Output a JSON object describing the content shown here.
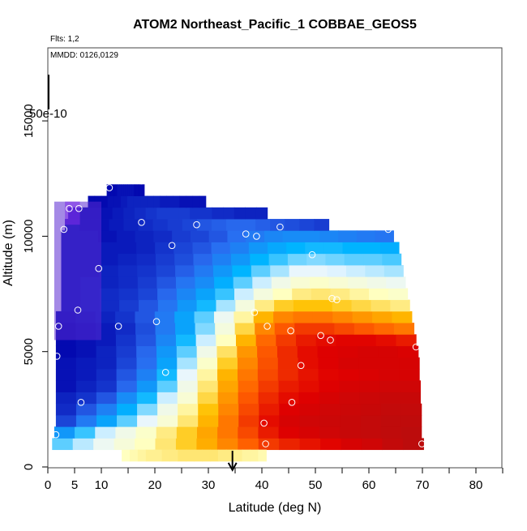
{
  "header": {
    "title": "ATOM2 Northeast_Pacific_1 COBBAE_GEOS5",
    "flights": "Flts: 1,2",
    "dates": "MMDD: 0126,0129",
    "colorbar_label": "50e-10"
  },
  "chart_data": {
    "type": "heatmap",
    "title": "ATOM2 Northeast_Pacific_1 COBBAE_GEOS5",
    "xlabel": "Latitude (deg N)",
    "ylabel": "Altitude (m)",
    "xlim": [
      0,
      85
    ],
    "ylim": [
      0,
      17500
    ],
    "xticks": [
      0,
      5,
      10,
      20,
      30,
      40,
      50,
      60,
      70,
      80
    ],
    "xtick_labels": [
      "0",
      "5",
      "10",
      "20",
      "30",
      "40",
      "50",
      "60",
      "70",
      "80"
    ],
    "yticks": [
      0,
      5000,
      10000,
      15000
    ],
    "ytick_labels": [
      "0",
      "5000",
      "10000",
      "15000"
    ],
    "grid": false,
    "colorscale": [
      "#0000aa",
      "#2a6cf0",
      "#00b4ff",
      "#e8f6ff",
      "#ffffc0",
      "#ffc000",
      "#ff6000",
      "#e00000",
      "#b01010"
    ],
    "row_height_m": 500,
    "rows": [
      {
        "alt": 1000,
        "x0": 0.8,
        "x1": 70.2,
        "v": [
          0.3,
          0.35,
          0.4,
          0.45,
          0.5,
          0.55,
          0.6,
          0.65,
          0.7,
          0.75,
          0.8,
          0.83,
          0.85,
          0.87,
          0.9,
          0.92,
          0.95,
          0.97
        ]
      },
      {
        "alt": 1500,
        "x0": 1.2,
        "x1": 69.8,
        "v": [
          0.2,
          0.28,
          0.36,
          0.42,
          0.48,
          0.54,
          0.6,
          0.66,
          0.72,
          0.78,
          0.84,
          0.88,
          0.9,
          0.92,
          0.94,
          0.95,
          0.96,
          0.97
        ]
      },
      {
        "alt": 2000,
        "x0": 1.5,
        "x1": 69.8,
        "v": [
          0.08,
          0.15,
          0.22,
          0.3,
          0.38,
          0.46,
          0.55,
          0.64,
          0.72,
          0.8,
          0.86,
          0.9,
          0.92,
          0.93,
          0.94,
          0.95,
          0.96,
          0.96
        ]
      },
      {
        "alt": 2500,
        "x0": 1.5,
        "x1": 69.8,
        "v": [
          0.05,
          0.1,
          0.16,
          0.24,
          0.32,
          0.42,
          0.52,
          0.62,
          0.7,
          0.78,
          0.84,
          0.88,
          0.9,
          0.92,
          0.93,
          0.94,
          0.95,
          0.95
        ]
      },
      {
        "alt": 3000,
        "x0": 1.5,
        "x1": 69.6,
        "v": [
          0.04,
          0.06,
          0.1,
          0.18,
          0.26,
          0.36,
          0.46,
          0.58,
          0.68,
          0.76,
          0.82,
          0.86,
          0.88,
          0.9,
          0.92,
          0.93,
          0.94,
          0.94
        ]
      },
      {
        "alt": 3500,
        "x0": 1.5,
        "x1": 69.6,
        "v": [
          0.02,
          0.04,
          0.06,
          0.12,
          0.2,
          0.3,
          0.42,
          0.55,
          0.66,
          0.74,
          0.8,
          0.84,
          0.86,
          0.88,
          0.9,
          0.91,
          0.92,
          0.92
        ]
      },
      {
        "alt": 4000,
        "x0": 1.5,
        "x1": 69.4,
        "v": [
          0.02,
          0.03,
          0.05,
          0.1,
          0.16,
          0.26,
          0.38,
          0.52,
          0.64,
          0.72,
          0.78,
          0.82,
          0.85,
          0.87,
          0.88,
          0.89,
          0.9,
          0.9
        ]
      },
      {
        "alt": 4500,
        "x0": 1.5,
        "x1": 69.4,
        "v": [
          0.02,
          0.03,
          0.04,
          0.08,
          0.13,
          0.22,
          0.34,
          0.48,
          0.6,
          0.7,
          0.77,
          0.82,
          0.86,
          0.88,
          0.9,
          0.9,
          0.9,
          0.9
        ]
      },
      {
        "alt": 5000,
        "x0": 1.5,
        "x1": 69.2,
        "v": [
          0.01,
          0.02,
          0.04,
          0.07,
          0.12,
          0.2,
          0.3,
          0.42,
          0.56,
          0.68,
          0.76,
          0.82,
          0.86,
          0.88,
          0.89,
          0.9,
          0.9,
          0.89
        ]
      },
      {
        "alt": 5500,
        "x0": 1.5,
        "x1": 68.8,
        "v": [
          0.01,
          0.02,
          0.03,
          0.06,
          0.1,
          0.17,
          0.26,
          0.36,
          0.5,
          0.64,
          0.74,
          0.8,
          0.84,
          0.86,
          0.87,
          0.87,
          0.86,
          0.84
        ]
      },
      {
        "alt": 6000,
        "x0": 1.5,
        "x1": 68.4,
        "v": [
          0.01,
          0.02,
          0.03,
          0.05,
          0.09,
          0.15,
          0.22,
          0.32,
          0.44,
          0.58,
          0.7,
          0.76,
          0.8,
          0.8,
          0.78,
          0.76,
          0.74,
          0.72
        ]
      },
      {
        "alt": 6500,
        "x0": 1.5,
        "x1": 68.0,
        "v": [
          0.02,
          0.03,
          0.04,
          0.06,
          0.1,
          0.15,
          0.22,
          0.3,
          0.4,
          0.52,
          0.64,
          0.7,
          0.72,
          0.72,
          0.7,
          0.68,
          0.66,
          0.64
        ]
      },
      {
        "alt": 7000,
        "x0": 2.5,
        "x1": 67.6,
        "v": [
          0.03,
          0.04,
          0.05,
          0.07,
          0.1,
          0.14,
          0.2,
          0.26,
          0.34,
          0.44,
          0.54,
          0.6,
          0.62,
          0.62,
          0.6,
          0.58,
          0.56,
          0.54
        ]
      },
      {
        "alt": 7500,
        "x0": 2.5,
        "x1": 67.2,
        "v": [
          0.03,
          0.04,
          0.05,
          0.06,
          0.08,
          0.12,
          0.17,
          0.22,
          0.28,
          0.36,
          0.44,
          0.5,
          0.54,
          0.55,
          0.54,
          0.52,
          0.5,
          0.48
        ]
      },
      {
        "alt": 8000,
        "x0": 2.5,
        "x1": 66.8,
        "v": [
          0.03,
          0.04,
          0.04,
          0.05,
          0.07,
          0.1,
          0.14,
          0.18,
          0.24,
          0.3,
          0.36,
          0.42,
          0.46,
          0.48,
          0.46,
          0.44,
          0.42,
          0.4
        ]
      },
      {
        "alt": 8500,
        "x0": 2.5,
        "x1": 66.4,
        "v": [
          0.03,
          0.03,
          0.04,
          0.05,
          0.06,
          0.08,
          0.11,
          0.15,
          0.2,
          0.25,
          0.3,
          0.34,
          0.38,
          0.38,
          0.37,
          0.36,
          0.35,
          0.34
        ]
      },
      {
        "alt": 9000,
        "x0": 2.5,
        "x1": 66.0,
        "v": [
          0.03,
          0.03,
          0.03,
          0.04,
          0.05,
          0.07,
          0.09,
          0.12,
          0.16,
          0.2,
          0.25,
          0.28,
          0.31,
          0.32,
          0.31,
          0.3,
          0.3,
          0.29
        ]
      },
      {
        "alt": 9500,
        "x0": 2.5,
        "x1": 65.6,
        "v": [
          0.03,
          0.03,
          0.03,
          0.03,
          0.04,
          0.06,
          0.08,
          0.1,
          0.13,
          0.16,
          0.2,
          0.23,
          0.25,
          0.26,
          0.26,
          0.25,
          0.25,
          0.24
        ]
      },
      {
        "alt": 10000,
        "x0": 2.5,
        "x1": 64.6,
        "v": [
          0.03,
          0.03,
          0.02,
          0.03,
          0.04,
          0.05,
          0.07,
          0.08,
          0.1,
          0.13,
          0.15,
          0.17,
          0.18,
          0.18,
          0.17,
          0.16,
          0.15,
          0.14
        ]
      },
      {
        "alt": 10500,
        "x0": 3.2,
        "x1": 52.5,
        "v": [
          0.03,
          0.02,
          0.02,
          0.03,
          0.04,
          0.05,
          0.06,
          0.07,
          0.08,
          0.1,
          0.11,
          0.12,
          0.12,
          0.11,
          0.1,
          0.09,
          0.08,
          0.07
        ]
      },
      {
        "alt": 11000,
        "x0": 3.8,
        "x1": 41.0,
        "v": [
          0.02,
          0.02,
          0.02,
          0.02,
          0.03,
          0.04,
          0.05,
          0.06,
          0.07,
          0.07,
          0.07,
          0.06,
          0.06,
          0.05,
          0.05,
          0.04,
          0.04,
          0.04
        ]
      },
      {
        "alt": 11500,
        "x0": 7.5,
        "x1": 29.5,
        "v": [
          0.01,
          0.01,
          0.01,
          0.02,
          0.02,
          0.03,
          0.04,
          0.04,
          0.04,
          0.04,
          0.04,
          0.03,
          0.03,
          0.03,
          0.02,
          0.02,
          0.02,
          0.02
        ]
      },
      {
        "alt": 12000,
        "x0": 11.0,
        "x1": 18.0,
        "v": [
          0.01,
          0.01,
          0.01,
          0.01,
          0.01,
          0.02,
          0.02,
          0.02,
          0.02,
          0.02,
          0.02,
          0.02,
          0.02,
          0.01,
          0.01,
          0.01,
          0.01,
          0.01
        ]
      },
      {
        "alt": 500,
        "x0": 13.8,
        "x1": 40.8,
        "v": [
          0.5,
          0.51,
          0.52,
          0.53,
          0.53,
          0.54,
          0.54,
          0.55,
          0.55,
          0.55,
          0.55,
          0.55,
          0.54,
          0.54,
          0.53,
          0.52,
          0.52,
          0.51
        ]
      }
    ],
    "overlay_patches": [
      {
        "alt_from": 5500,
        "alt_to": 11500,
        "x0": 1.2,
        "x1": 10.0,
        "color": "#5a28d2"
      },
      {
        "alt_from": 10500,
        "alt_to": 11500,
        "x0": 3.2,
        "x1": 6.0,
        "color": "#7d2be8"
      }
    ],
    "points": [
      {
        "x": 1.5,
        "y": 1400
      },
      {
        "x": 1.7,
        "y": 4800
      },
      {
        "x": 2.0,
        "y": 6100
      },
      {
        "x": 3.0,
        "y": 10300
      },
      {
        "x": 4.0,
        "y": 11200
      },
      {
        "x": 5.8,
        "y": 11200
      },
      {
        "x": 5.6,
        "y": 6800
      },
      {
        "x": 6.2,
        "y": 2800
      },
      {
        "x": 9.5,
        "y": 8600
      },
      {
        "x": 11.5,
        "y": 12100
      },
      {
        "x": 13.2,
        "y": 6100
      },
      {
        "x": 17.5,
        "y": 10600
      },
      {
        "x": 17.5,
        "y": 12400
      },
      {
        "x": 20.3,
        "y": 6300
      },
      {
        "x": 22.0,
        "y": 4100
      },
      {
        "x": 23.2,
        "y": 9600
      },
      {
        "x": 27.8,
        "y": 10500
      },
      {
        "x": 37.0,
        "y": 10100
      },
      {
        "x": 39.0,
        "y": 10000
      },
      {
        "x": 38.6,
        "y": 6700
      },
      {
        "x": 40.4,
        "y": 1900
      },
      {
        "x": 40.7,
        "y": 1000
      },
      {
        "x": 41.0,
        "y": 6100
      },
      {
        "x": 43.4,
        "y": 10400
      },
      {
        "x": 45.4,
        "y": 5900
      },
      {
        "x": 45.6,
        "y": 2800
      },
      {
        "x": 47.3,
        "y": 4400
      },
      {
        "x": 49.4,
        "y": 9200
      },
      {
        "x": 51.0,
        "y": 5700
      },
      {
        "x": 52.8,
        "y": 5500
      },
      {
        "x": 53.1,
        "y": 7300
      },
      {
        "x": 54.0,
        "y": 7250
      },
      {
        "x": 63.6,
        "y": 10300
      },
      {
        "x": 68.8,
        "y": 5200
      },
      {
        "x": 69.9,
        "y": 1000
      }
    ],
    "marker": {
      "x": 34.5,
      "y_from": 700,
      "y_to": -100
    },
    "colorbar_tick": {
      "y_from": 17000,
      "y_to": 15500
    }
  }
}
